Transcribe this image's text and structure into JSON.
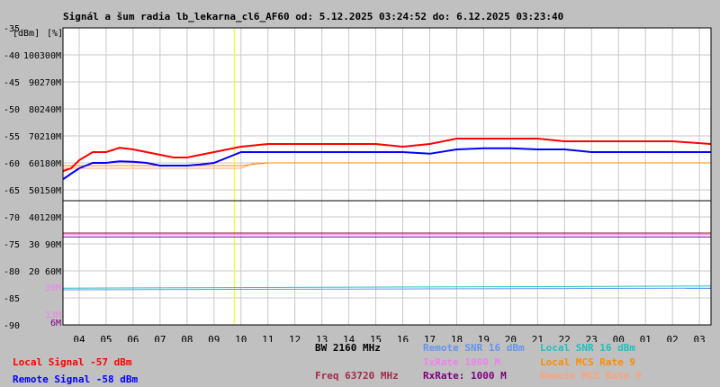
{
  "chart_data": {
    "type": "line",
    "title": "Signál a šum radia lb_lekarna_cl6_AF60 od: 5.12.2025 03:24:52 do: 6.12.2025 03:23:40",
    "y_axes": {
      "dbm": {
        "label": "[dBm]",
        "ticks": [
          "-35",
          "-40",
          "-45",
          "-50",
          "-55",
          "-60",
          "-65",
          "-70",
          "-75",
          "-80",
          "-85",
          "-90"
        ]
      },
      "percent": {
        "label": "[%]",
        "ticks": [
          "100",
          "90",
          "80",
          "70",
          "60",
          "50",
          "40",
          "30",
          "20"
        ]
      },
      "rate": {
        "ticks": [
          "300M",
          "270M",
          "240M",
          "210M",
          "180M",
          "150M",
          "120M",
          "90M",
          "60M"
        ],
        "lower_ticks": [
          "39M",
          "13M",
          "6M"
        ]
      },
      "ylim": [
        -90,
        -35
      ]
    },
    "x_axis": {
      "label": "[h]",
      "ticks": [
        "04",
        "05",
        "06",
        "07",
        "08",
        "09",
        "10",
        "11",
        "12",
        "13",
        "14",
        "15",
        "16",
        "17",
        "18",
        "19",
        "20",
        "21",
        "22",
        "23",
        "00",
        "01",
        "02",
        "03"
      ],
      "xlim": [
        3.4,
        27.43
      ]
    },
    "grid": true,
    "series": [
      {
        "name": "Local Signal",
        "color": "#ff0000",
        "points": [
          [
            3.41,
            -61.5
          ],
          [
            3.7,
            -61
          ],
          [
            4.0,
            -59.5
          ],
          [
            4.5,
            -58
          ],
          [
            5.0,
            -58
          ],
          [
            5.5,
            -57.2
          ],
          [
            6.0,
            -57.5
          ],
          [
            6.5,
            -58
          ],
          [
            7.0,
            -58.5
          ],
          [
            7.5,
            -59
          ],
          [
            8.0,
            -59
          ],
          [
            8.5,
            -58.5
          ],
          [
            9.0,
            -58
          ],
          [
            9.5,
            -57.5
          ],
          [
            10.0,
            -57
          ],
          [
            11.0,
            -56.5
          ],
          [
            12.0,
            -56.5
          ],
          [
            13.0,
            -56.5
          ],
          [
            14.0,
            -56.5
          ],
          [
            15.0,
            -56.5
          ],
          [
            16.0,
            -57
          ],
          [
            17.0,
            -56.5
          ],
          [
            18.0,
            -55.5
          ],
          [
            19.0,
            -55.5
          ],
          [
            20.0,
            -55.5
          ],
          [
            21.0,
            -55.5
          ],
          [
            22.0,
            -56
          ],
          [
            23.0,
            -56
          ],
          [
            24.0,
            -56
          ],
          [
            25.0,
            -56
          ],
          [
            26.0,
            -56
          ],
          [
            27.42,
            -56.5
          ]
        ]
      },
      {
        "name": "Remote Signal",
        "color": "#0000ff",
        "points": [
          [
            3.41,
            -63
          ],
          [
            3.7,
            -62
          ],
          [
            4.0,
            -61
          ],
          [
            4.5,
            -60
          ],
          [
            5.0,
            -60
          ],
          [
            5.5,
            -59.7
          ],
          [
            6.0,
            -59.8
          ],
          [
            6.5,
            -60
          ],
          [
            7.0,
            -60.5
          ],
          [
            7.5,
            -60.5
          ],
          [
            8.0,
            -60.5
          ],
          [
            8.5,
            -60.3
          ],
          [
            9.0,
            -60
          ],
          [
            9.5,
            -59
          ],
          [
            10.0,
            -58
          ],
          [
            11.0,
            -58
          ],
          [
            12.0,
            -58
          ],
          [
            13.0,
            -58
          ],
          [
            14.0,
            -58
          ],
          [
            15.0,
            -58
          ],
          [
            16.0,
            -58
          ],
          [
            17.0,
            -58.3
          ],
          [
            18.0,
            -57.5
          ],
          [
            19.0,
            -57.3
          ],
          [
            20.0,
            -57.3
          ],
          [
            21.0,
            -57.5
          ],
          [
            22.0,
            -57.5
          ],
          [
            23.0,
            -58
          ],
          [
            24.0,
            -58
          ],
          [
            25.0,
            -58
          ],
          [
            26.0,
            -58
          ],
          [
            27.42,
            -58
          ]
        ]
      },
      {
        "name": "Local MCS Rate 9",
        "color": "#ff8c00",
        "points": [
          [
            3.41,
            -60.5
          ],
          [
            10.0,
            -60.5
          ],
          [
            11.0,
            -60
          ],
          [
            27.42,
            -60
          ]
        ]
      },
      {
        "name": "Remote MCS Rate 9",
        "color": "#ffa07a",
        "points": [
          [
            3.41,
            -61
          ],
          [
            10.0,
            -61
          ],
          [
            10.5,
            -60
          ],
          [
            27.42,
            -60
          ]
        ]
      },
      {
        "name": "TxRate 1000 M",
        "color": "#ee82ee",
        "points": [
          [
            3.4,
            -73.3
          ],
          [
            27.43,
            -73.3
          ]
        ]
      },
      {
        "name": "RxRate: 1000 M",
        "color": "#800080",
        "points": [
          [
            3.4,
            -73.7
          ],
          [
            27.43,
            -73.7
          ]
        ]
      },
      {
        "name": "Freq 63720 MHz",
        "color": "#8b0000",
        "points": [
          [
            3.4,
            -73.0
          ],
          [
            27.43,
            -73.0
          ]
        ]
      },
      {
        "name": "BW 2160 MHz",
        "color": "#000000",
        "points": [
          [
            3.4,
            -67.0
          ],
          [
            27.43,
            -67.0
          ]
        ]
      },
      {
        "name": "Remote SNR 16 dBm",
        "color": "#6495ed",
        "points": [
          [
            3.41,
            -83.5
          ],
          [
            27.42,
            -83.2
          ]
        ]
      },
      {
        "name": "Local SNR 16 dBm",
        "color": "#20c0c0",
        "points": [
          [
            3.41,
            -83.2
          ],
          [
            27.42,
            -82.8
          ]
        ]
      }
    ],
    "marker": {
      "x": 9.75,
      "color": "#ffff00"
    }
  },
  "legend": {
    "bw": {
      "text": "BW 2160 MHz",
      "color": "#000000"
    },
    "remote_snr": {
      "text": "Remote SNR 16 dBm",
      "color": "#6495ed"
    },
    "local_snr": {
      "text": "Local SNR 16 dBm",
      "color": "#20c0c0"
    },
    "local_signal": {
      "text": "Local Signal -57 dBm",
      "color": "#ff0000"
    },
    "txrate": {
      "text": "TxRate 1000 M",
      "color": "#ee82ee"
    },
    "local_mcs": {
      "text": "Local MCS Rate 9",
      "color": "#ff8c00"
    },
    "remote_signal": {
      "text": "Remote Signal -58 dBm",
      "color": "#0000ff"
    },
    "freq": {
      "text": "Freq 63720 MHz",
      "color": "#a52a4a"
    },
    "rxrate": {
      "text": "RxRate: 1000 M",
      "color": "#800080"
    },
    "remote_mcs": {
      "text": "Remote MCS Rate 9",
      "color": "#ffa07a"
    }
  }
}
